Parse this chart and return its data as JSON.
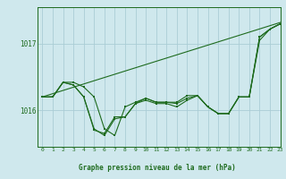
{
  "background_color": "#cfe8ed",
  "grid_color": "#aacdd6",
  "line_color": "#1e6b1e",
  "title": "Graphe pression niveau de la mer (hPa)",
  "xlim": [
    -0.5,
    23
  ],
  "ylim": [
    1015.45,
    1017.55
  ],
  "yticks": [
    1016,
    1017
  ],
  "xticks": [
    0,
    1,
    2,
    3,
    4,
    5,
    6,
    7,
    8,
    9,
    10,
    11,
    12,
    13,
    14,
    15,
    16,
    17,
    18,
    19,
    20,
    21,
    22,
    23
  ],
  "series_with_markers": [
    [
      1016.2,
      1016.2,
      1016.42,
      1016.42,
      1016.35,
      1016.2,
      1015.72,
      1015.62,
      1016.05,
      1016.12,
      1016.18,
      1016.12,
      1016.12,
      1016.12,
      1016.22,
      1016.22,
      1016.05,
      1015.95,
      1015.95,
      1016.2,
      1016.2,
      1017.1,
      1017.22,
      1017.3
    ],
    [
      1016.2,
      1016.2,
      1016.42,
      1016.38,
      1016.2,
      1015.7,
      1015.65,
      1015.9,
      1015.9,
      1016.1,
      1016.15,
      1016.1,
      1016.1,
      1016.05,
      1016.15,
      1016.22,
      1016.05,
      1015.95,
      1015.95,
      1016.2,
      1016.2,
      1017.1,
      1017.22,
      1017.3
    ],
    [
      1016.2,
      1016.2,
      1016.42,
      1016.38,
      1016.2,
      1015.72,
      1015.62,
      1015.87,
      1015.9,
      1016.1,
      1016.18,
      1016.12,
      1016.12,
      1016.1,
      1016.18,
      1016.22,
      1016.05,
      1015.95,
      1015.95,
      1016.2,
      1016.2,
      1017.05,
      1017.22,
      1017.3
    ]
  ],
  "series_straight": [
    [
      0,
      1016.2
    ],
    [
      23,
      1017.32
    ]
  ]
}
